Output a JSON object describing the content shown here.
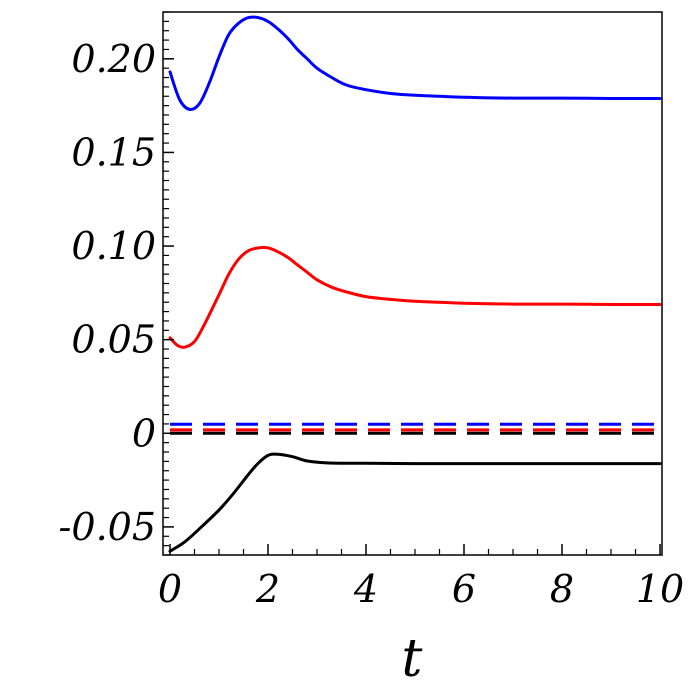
{
  "chart_data": {
    "type": "line",
    "title": "",
    "xlabel": "t",
    "ylabel": "",
    "xlim": [
      0,
      10
    ],
    "ylim": [
      -0.065,
      0.225
    ],
    "grid": false,
    "x_ticks": [
      0,
      2,
      4,
      6,
      8,
      10
    ],
    "x_tick_labels": [
      "0",
      "2",
      "4",
      "6",
      "8",
      "10"
    ],
    "y_ticks": [
      -0.05,
      0,
      0.05,
      0.1,
      0.15,
      0.2
    ],
    "y_tick_labels": [
      "-0.05",
      "0",
      "0.05",
      "0.10",
      "0.15",
      "0.20"
    ],
    "series": [
      {
        "color": "#0000ff",
        "style": "solid",
        "x": [
          0,
          0.2,
          0.4,
          0.6,
          0.8,
          1.0,
          1.2,
          1.4,
          1.6,
          1.8,
          2.0,
          2.2,
          2.4,
          2.6,
          2.8,
          3.0,
          3.3,
          3.6,
          4.0,
          4.5,
          5.0,
          5.5,
          6.0,
          7.0,
          8.0,
          9.0,
          10.0
        ],
        "y": [
          0.193,
          0.178,
          0.173,
          0.176,
          0.187,
          0.201,
          0.213,
          0.219,
          0.222,
          0.222,
          0.22,
          0.216,
          0.211,
          0.205,
          0.2,
          0.195,
          0.19,
          0.186,
          0.1835,
          0.1815,
          0.1805,
          0.18,
          0.1795,
          0.179,
          0.179,
          0.1788,
          0.1788
        ]
      },
      {
        "color": "#ff0000",
        "style": "solid",
        "x": [
          0,
          0.15,
          0.3,
          0.5,
          0.7,
          1.0,
          1.2,
          1.4,
          1.6,
          1.8,
          2.0,
          2.2,
          2.4,
          2.6,
          2.8,
          3.0,
          3.3,
          3.6,
          4.0,
          4.5,
          5.0,
          5.5,
          6.0,
          7.0,
          8.0,
          9.0,
          10.0
        ],
        "y": [
          0.051,
          0.047,
          0.046,
          0.049,
          0.058,
          0.074,
          0.085,
          0.093,
          0.0975,
          0.099,
          0.099,
          0.097,
          0.094,
          0.09,
          0.086,
          0.082,
          0.078,
          0.0755,
          0.073,
          0.0715,
          0.0705,
          0.07,
          0.0695,
          0.069,
          0.069,
          0.0688,
          0.0688
        ]
      },
      {
        "color": "#000000",
        "style": "solid",
        "x": [
          0,
          0.3,
          0.6,
          1.0,
          1.3,
          1.6,
          1.8,
          2.0,
          2.2,
          2.5,
          2.8,
          3.2,
          3.6,
          4.0,
          5.0,
          6.0,
          7.0,
          8.0,
          9.0,
          10.0
        ],
        "y": [
          -0.063,
          -0.058,
          -0.051,
          -0.041,
          -0.032,
          -0.022,
          -0.016,
          -0.0118,
          -0.0112,
          -0.0125,
          -0.0148,
          -0.0158,
          -0.016,
          -0.016,
          -0.0162,
          -0.0162,
          -0.0162,
          -0.0162,
          -0.0162,
          -0.0162
        ]
      },
      {
        "color": "#0000ff",
        "style": "dashed",
        "x": [
          0,
          10
        ],
        "y": [
          0.0048,
          0.0048
        ]
      },
      {
        "color": "#ff0000",
        "style": "dashed",
        "x": [
          0,
          10
        ],
        "y": [
          0.0018,
          0.0018
        ]
      },
      {
        "color": "#000000",
        "style": "dashed",
        "x": [
          0,
          10
        ],
        "y": [
          0.0,
          0.0
        ]
      }
    ]
  }
}
